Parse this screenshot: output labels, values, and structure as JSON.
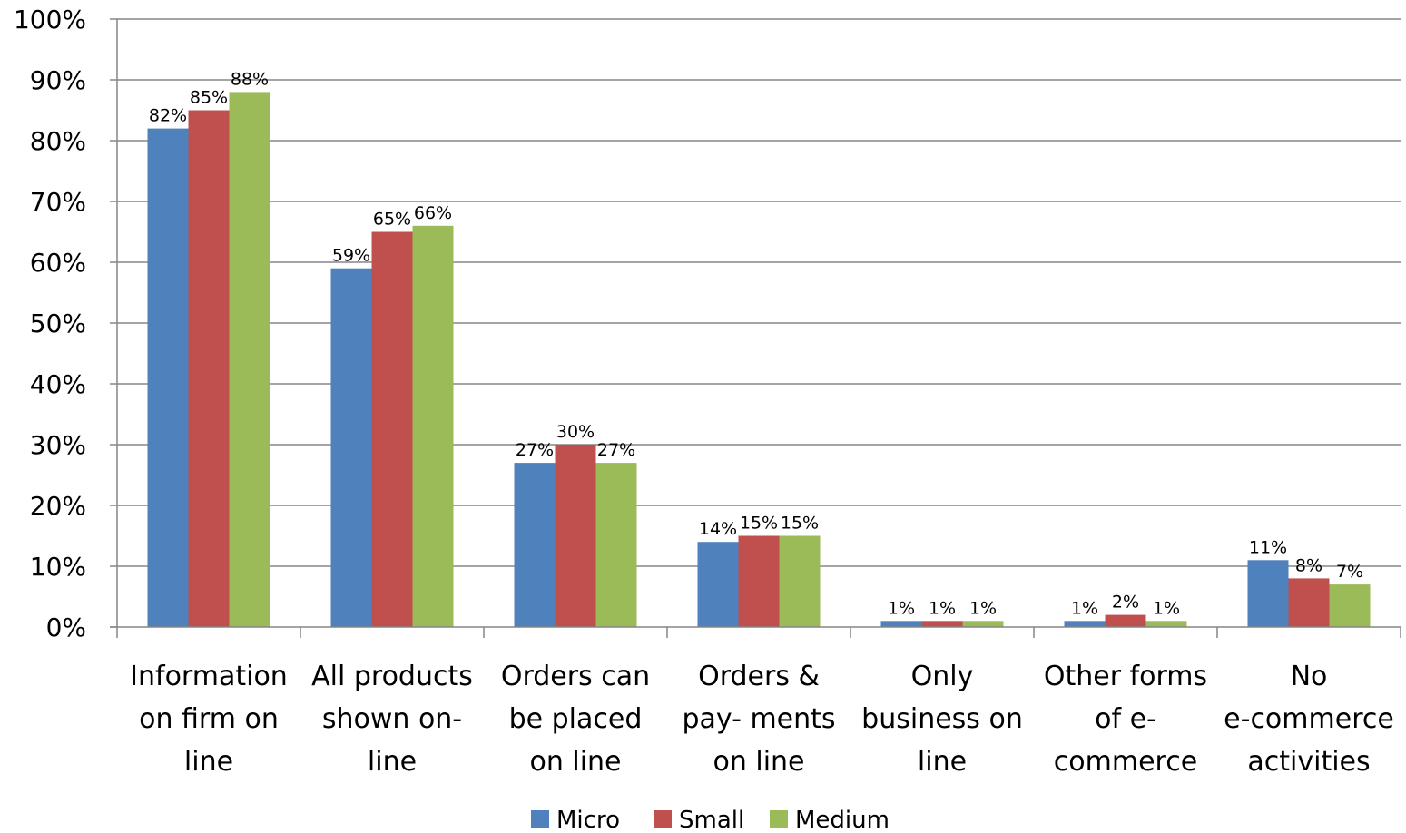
{
  "chart_data": {
    "type": "bar",
    "categories": [
      [
        "Information",
        "on firm on",
        "line"
      ],
      [
        "All products",
        "shown on-",
        "line"
      ],
      [
        "Orders can",
        "be placed",
        "on line"
      ],
      [
        "Orders &",
        "pay- ments",
        "on line"
      ],
      [
        "Only",
        "business on",
        "line"
      ],
      [
        "Other forms",
        "of e-",
        "commerce"
      ],
      [
        "No",
        "e-commerce",
        "activities"
      ]
    ],
    "series": [
      {
        "name": "Micro",
        "color": "#4F81BD",
        "values": [
          82,
          59,
          27,
          14,
          1,
          1,
          11
        ],
        "labels": [
          "82%",
          "59%",
          "27%",
          "14%",
          "1%",
          "1%",
          "11%"
        ]
      },
      {
        "name": "Small",
        "color": "#C0504D",
        "values": [
          85,
          65,
          30,
          15,
          1,
          2,
          8
        ],
        "labels": [
          "85%",
          "65%",
          "30%",
          "15%",
          "1%",
          "2%",
          "8%"
        ]
      },
      {
        "name": "Medium",
        "color": "#9BBB59",
        "values": [
          88,
          66,
          27,
          15,
          1,
          1,
          7
        ],
        "labels": [
          "88%",
          "66%",
          "27%",
          "15%",
          "1%",
          "1%",
          "7%"
        ]
      }
    ],
    "yticks": [
      "0%",
      "10%",
      "20%",
      "30%",
      "40%",
      "50%",
      "60%",
      "70%",
      "80%",
      "90%",
      "100%"
    ],
    "ylim": [
      0,
      100
    ],
    "grid": true,
    "legend_position": "bottom",
    "gridline_color": "#868686"
  }
}
